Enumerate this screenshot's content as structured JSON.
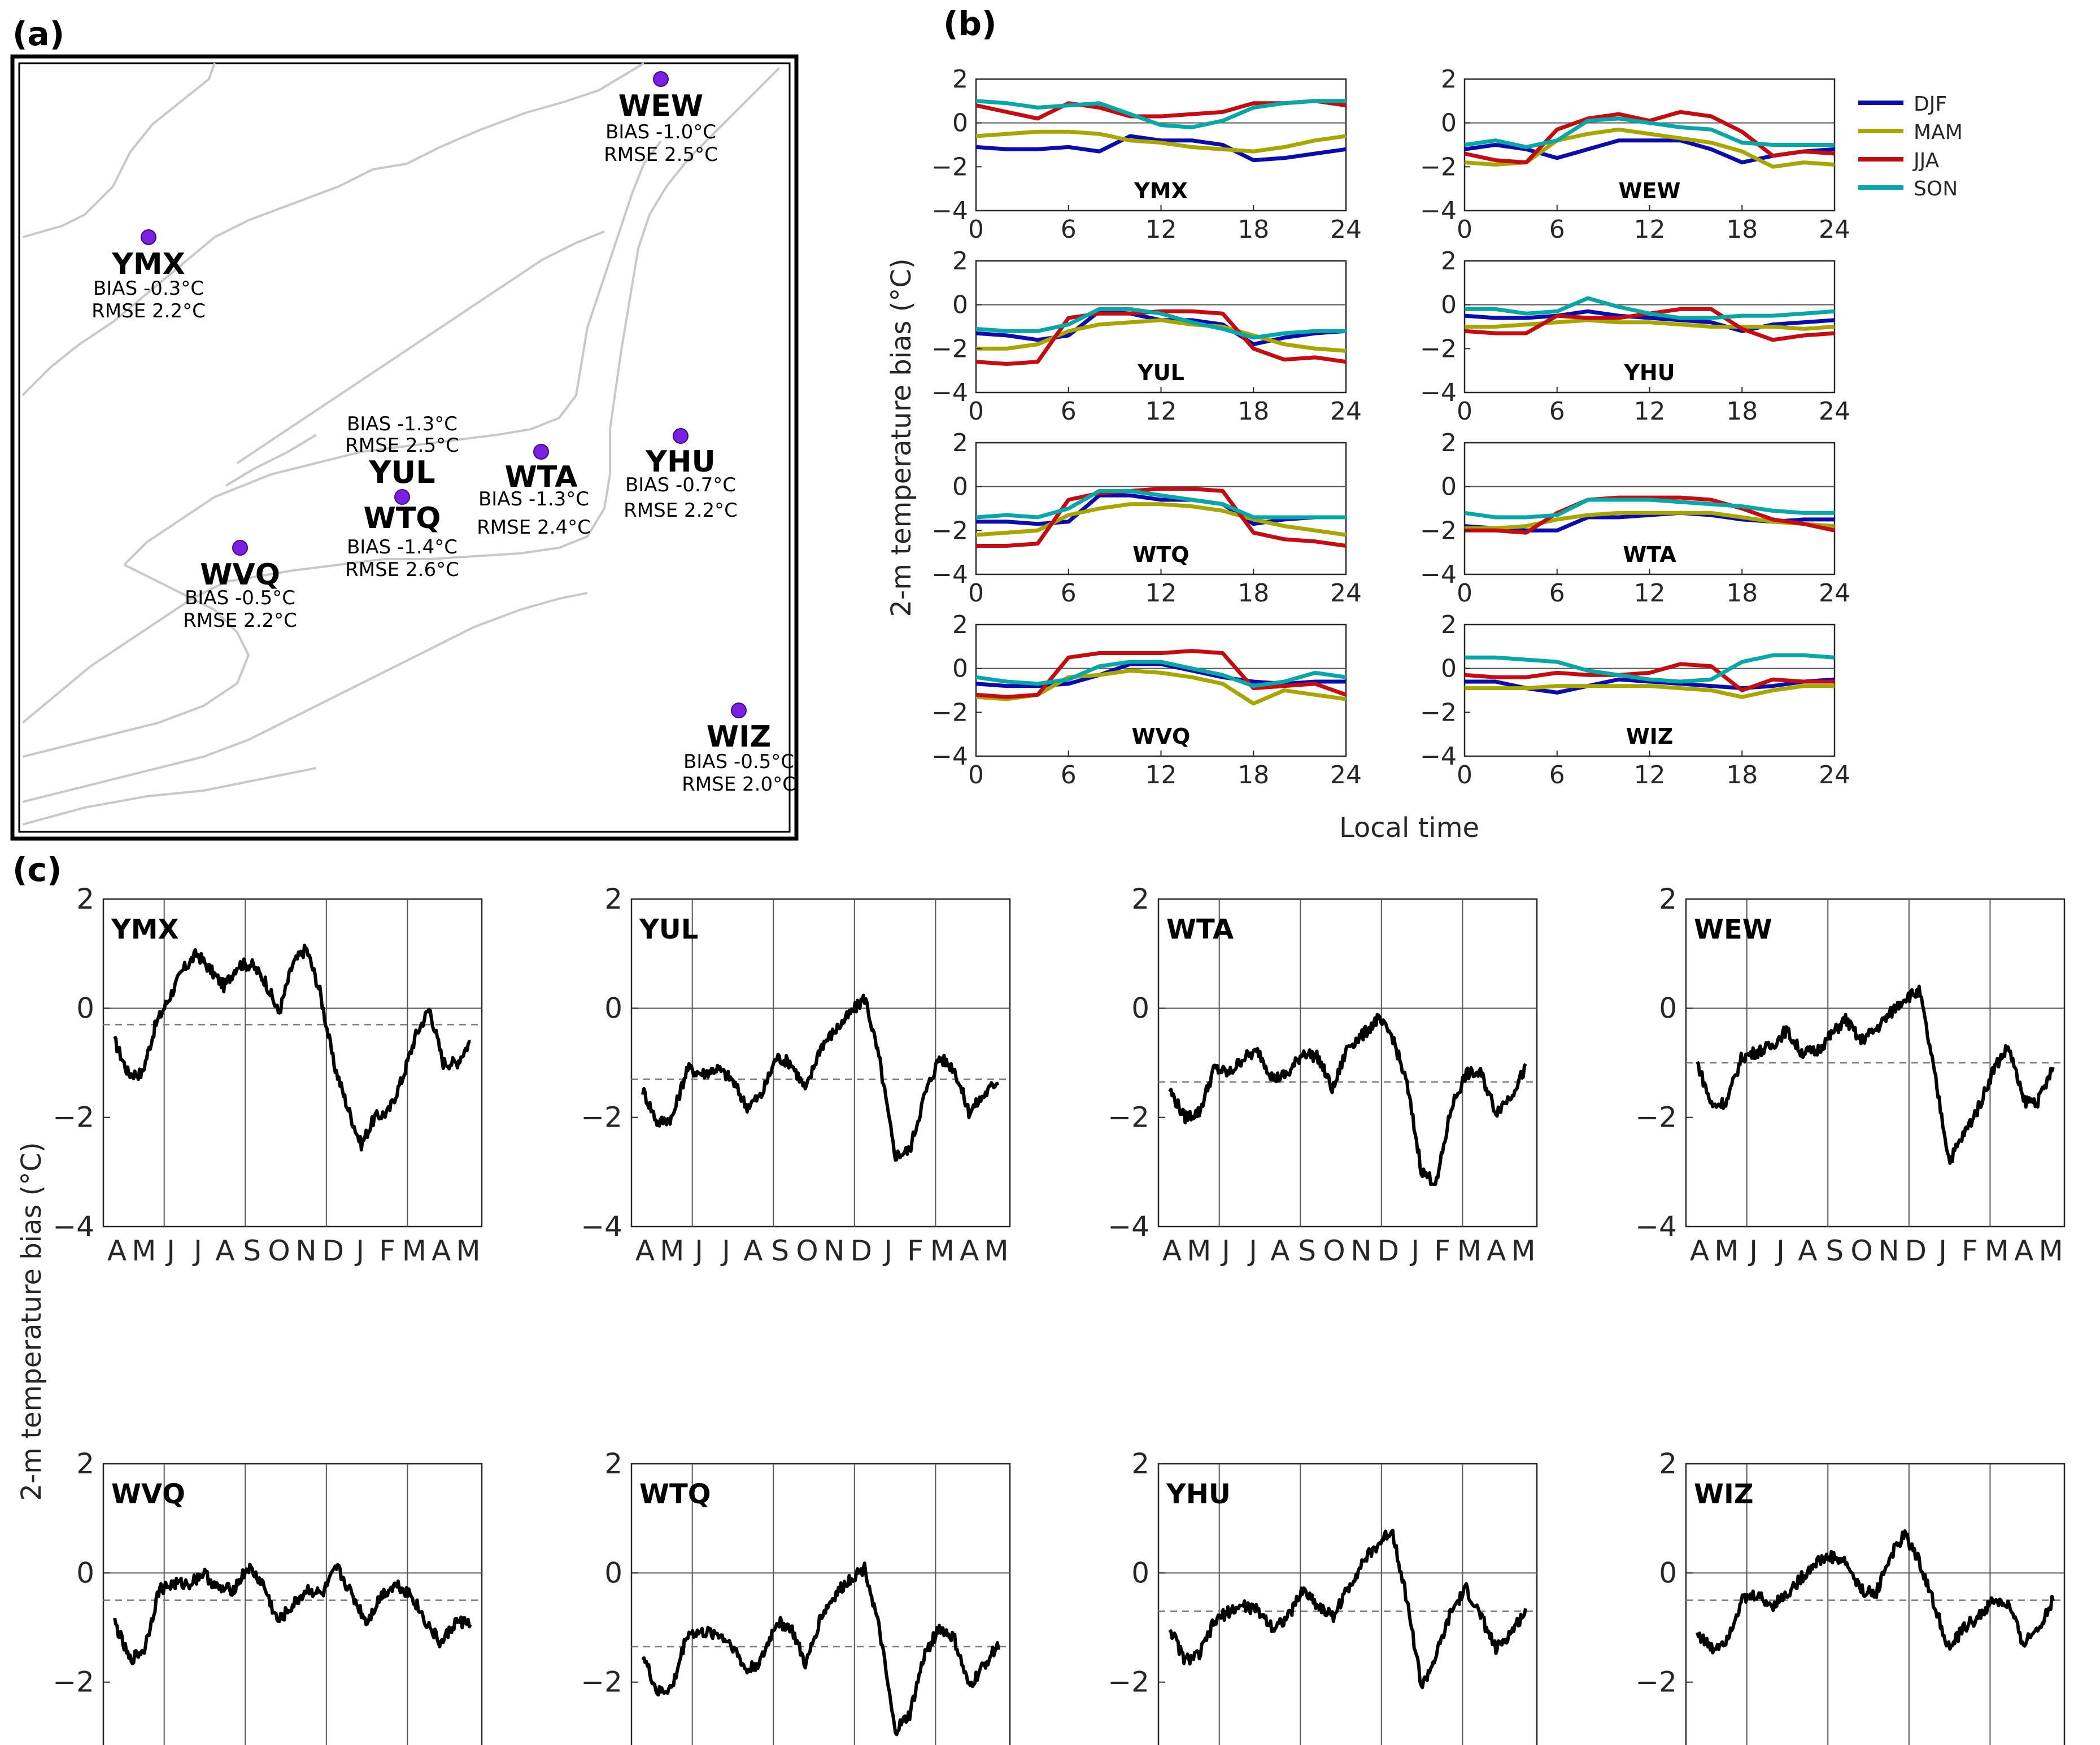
{
  "panel_labels": {
    "a": "(a)",
    "b": "(b)",
    "c": "(c)"
  },
  "colors": {
    "DJF": "#0c0ca8",
    "MAM": "#a8a400",
    "JJA": "#c00e12",
    "SON": "#0aa6a6",
    "line_c": "#000000",
    "dashed": "#7a7a7a",
    "coast": "#c8c8c8",
    "station_marker": "#7b1fe0"
  },
  "chart_data": [
    {
      "panel": "a",
      "type": "map",
      "stations": [
        {
          "code": "WEW",
          "bias": "BIAS -1.0°C",
          "rmse": "RMSE 2.5°C"
        },
        {
          "code": "YMX",
          "bias": "BIAS -0.3°C",
          "rmse": "RMSE 2.2°C"
        },
        {
          "code": "YUL",
          "bias": "BIAS -1.3°C",
          "rmse": "RMSE 2.5°C"
        },
        {
          "code": "WTQ",
          "bias": "BIAS -1.4°C",
          "rmse": "RMSE 2.6°C"
        },
        {
          "code": "WTA",
          "bias": "BIAS -1.3°C",
          "rmse": "RMSE 2.4°C"
        },
        {
          "code": "YHU",
          "bias": "BIAS -0.7°C",
          "rmse": "RMSE 2.2°C"
        },
        {
          "code": "WVQ",
          "bias": "BIAS -0.5°C",
          "rmse": "RMSE 2.2°C"
        },
        {
          "code": "WIZ",
          "bias": "BIAS -0.5°C",
          "rmse": "RMSE 2.0°C"
        }
      ]
    },
    {
      "panel": "b",
      "type": "line",
      "ylabel": "2-m temperature bias (°C)",
      "xlabel": "Local time",
      "xlim": [
        0,
        24
      ],
      "ylim": [
        -4,
        2
      ],
      "xticks": [
        "0",
        "6",
        "12",
        "18",
        "24"
      ],
      "yticks": [
        "2",
        "0",
        "−2",
        "−4"
      ],
      "legend": [
        "DJF",
        "MAM",
        "JJA",
        "SON"
      ],
      "hours": [
        0,
        2,
        4,
        6,
        8,
        10,
        12,
        14,
        16,
        18,
        20,
        22,
        24
      ],
      "subplots": [
        {
          "station": "YMX",
          "series": {
            "DJF": [
              -1.1,
              -1.2,
              -1.2,
              -1.1,
              -1.3,
              -0.6,
              -0.8,
              -0.8,
              -1.0,
              -1.7,
              -1.6,
              -1.4,
              -1.2
            ],
            "MAM": [
              -0.6,
              -0.5,
              -0.4,
              -0.4,
              -0.5,
              -0.8,
              -0.9,
              -1.1,
              -1.2,
              -1.3,
              -1.1,
              -0.8,
              -0.6
            ],
            "JJA": [
              0.8,
              0.5,
              0.2,
              0.9,
              0.7,
              0.3,
              0.3,
              0.4,
              0.5,
              0.9,
              0.9,
              1.0,
              0.8
            ],
            "SON": [
              1.0,
              0.9,
              0.7,
              0.8,
              0.9,
              0.4,
              -0.1,
              -0.2,
              0.1,
              0.7,
              0.9,
              1.0,
              1.0
            ]
          }
        },
        {
          "station": "WEW",
          "series": {
            "DJF": [
              -1.2,
              -1.0,
              -1.2,
              -1.6,
              -1.2,
              -0.8,
              -0.8,
              -0.8,
              -1.2,
              -1.8,
              -1.5,
              -1.3,
              -1.2
            ],
            "MAM": [
              -1.8,
              -1.9,
              -1.8,
              -0.8,
              -0.5,
              -0.3,
              -0.5,
              -0.7,
              -0.9,
              -1.3,
              -2.0,
              -1.8,
              -1.9
            ],
            "JJA": [
              -1.4,
              -1.7,
              -1.8,
              -0.3,
              0.2,
              0.4,
              0.1,
              0.5,
              0.3,
              -0.4,
              -1.5,
              -1.3,
              -1.4
            ],
            "SON": [
              -1.0,
              -0.8,
              -1.1,
              -0.8,
              0.1,
              0.2,
              0.0,
              -0.2,
              -0.3,
              -0.9,
              -1.0,
              -1.0,
              -1.0
            ]
          }
        },
        {
          "station": "YUL",
          "series": {
            "DJF": [
              -1.3,
              -1.4,
              -1.6,
              -1.4,
              -0.3,
              -0.4,
              -0.7,
              -0.7,
              -0.9,
              -1.8,
              -1.5,
              -1.3,
              -1.2
            ],
            "MAM": [
              -2.0,
              -2.0,
              -1.8,
              -1.2,
              -0.9,
              -0.8,
              -0.7,
              -0.9,
              -1.0,
              -1.4,
              -1.8,
              -2.0,
              -2.1
            ],
            "JJA": [
              -2.6,
              -2.7,
              -2.6,
              -0.6,
              -0.4,
              -0.4,
              -0.3,
              -0.3,
              -0.4,
              -2.0,
              -2.5,
              -2.4,
              -2.6
            ],
            "SON": [
              -1.1,
              -1.2,
              -1.2,
              -0.9,
              -0.2,
              -0.2,
              -0.4,
              -0.8,
              -1.1,
              -1.5,
              -1.3,
              -1.2,
              -1.2
            ]
          }
        },
        {
          "station": "YHU",
          "series": {
            "DJF": [
              -0.5,
              -0.6,
              -0.6,
              -0.5,
              -0.3,
              -0.5,
              -0.6,
              -0.7,
              -0.8,
              -1.2,
              -0.9,
              -0.8,
              -0.7
            ],
            "MAM": [
              -1.0,
              -1.0,
              -0.9,
              -0.8,
              -0.7,
              -0.8,
              -0.8,
              -0.9,
              -1.0,
              -1.0,
              -1.0,
              -1.1,
              -1.0
            ],
            "JJA": [
              -1.2,
              -1.3,
              -1.3,
              -0.5,
              -0.6,
              -0.6,
              -0.4,
              -0.2,
              -0.2,
              -1.1,
              -1.6,
              -1.4,
              -1.3
            ],
            "SON": [
              -0.2,
              -0.2,
              -0.4,
              -0.3,
              0.3,
              -0.1,
              -0.4,
              -0.6,
              -0.6,
              -0.5,
              -0.5,
              -0.4,
              -0.3
            ]
          }
        },
        {
          "station": "WTQ",
          "series": {
            "DJF": [
              -1.6,
              -1.6,
              -1.7,
              -1.6,
              -0.4,
              -0.4,
              -0.6,
              -0.6,
              -0.8,
              -1.7,
              -1.5,
              -1.4,
              -1.4
            ],
            "MAM": [
              -2.2,
              -2.1,
              -2.0,
              -1.3,
              -1.0,
              -0.8,
              -0.8,
              -0.9,
              -1.1,
              -1.5,
              -1.8,
              -2.0,
              -2.2
            ],
            "JJA": [
              -2.7,
              -2.7,
              -2.6,
              -0.6,
              -0.3,
              -0.2,
              -0.1,
              -0.1,
              -0.2,
              -2.1,
              -2.4,
              -2.5,
              -2.7
            ],
            "SON": [
              -1.4,
              -1.3,
              -1.4,
              -1.0,
              -0.2,
              -0.2,
              -0.4,
              -0.6,
              -0.8,
              -1.4,
              -1.4,
              -1.4,
              -1.4
            ]
          }
        },
        {
          "station": "WTA",
          "series": {
            "DJF": [
              -1.8,
              -1.9,
              -2.0,
              -2.0,
              -1.4,
              -1.4,
              -1.3,
              -1.2,
              -1.3,
              -1.5,
              -1.6,
              -1.5,
              -1.5
            ],
            "MAM": [
              -1.9,
              -1.9,
              -1.8,
              -1.5,
              -1.3,
              -1.2,
              -1.2,
              -1.2,
              -1.2,
              -1.4,
              -1.6,
              -1.7,
              -1.8
            ],
            "JJA": [
              -2.0,
              -2.0,
              -2.1,
              -1.2,
              -0.6,
              -0.5,
              -0.5,
              -0.5,
              -0.6,
              -1.0,
              -1.5,
              -1.7,
              -2.0
            ],
            "SON": [
              -1.2,
              -1.4,
              -1.4,
              -1.3,
              -0.6,
              -0.6,
              -0.6,
              -0.7,
              -0.8,
              -0.9,
              -1.1,
              -1.2,
              -1.2
            ]
          }
        },
        {
          "station": "WVQ",
          "series": {
            "DJF": [
              -0.7,
              -0.8,
              -0.8,
              -0.7,
              -0.3,
              0.2,
              0.2,
              -0.1,
              -0.4,
              -0.6,
              -0.7,
              -0.6,
              -0.6
            ],
            "MAM": [
              -1.3,
              -1.4,
              -1.2,
              -0.4,
              -0.3,
              -0.1,
              -0.2,
              -0.4,
              -0.7,
              -1.6,
              -1.0,
              -1.2,
              -1.4
            ],
            "JJA": [
              -1.2,
              -1.3,
              -1.2,
              0.5,
              0.7,
              0.7,
              0.7,
              0.8,
              0.7,
              -0.9,
              -0.8,
              -0.7,
              -1.2
            ],
            "SON": [
              -0.4,
              -0.6,
              -0.7,
              -0.5,
              0.1,
              0.3,
              0.3,
              0.0,
              -0.3,
              -0.8,
              -0.6,
              -0.2,
              -0.4
            ]
          }
        },
        {
          "station": "WIZ",
          "series": {
            "DJF": [
              -0.6,
              -0.6,
              -0.9,
              -1.1,
              -0.8,
              -0.5,
              -0.6,
              -0.7,
              -0.8,
              -0.9,
              -0.8,
              -0.6,
              -0.5
            ],
            "MAM": [
              -0.9,
              -0.9,
              -0.9,
              -0.8,
              -0.8,
              -0.8,
              -0.8,
              -0.9,
              -1.0,
              -1.3,
              -1.0,
              -0.8,
              -0.8
            ],
            "JJA": [
              -0.3,
              -0.4,
              -0.4,
              -0.2,
              -0.3,
              -0.3,
              -0.2,
              0.2,
              0.1,
              -1.0,
              -0.5,
              -0.6,
              -0.6
            ],
            "SON": [
              0.5,
              0.5,
              0.4,
              0.3,
              -0.1,
              -0.3,
              -0.5,
              -0.6,
              -0.5,
              0.3,
              0.6,
              0.6,
              0.5
            ]
          }
        }
      ]
    },
    {
      "panel": "c",
      "type": "line",
      "ylabel": "2-m temperature bias (°C)",
      "ylim": [
        -4,
        2
      ],
      "yticks": [
        "2",
        "0",
        "−2",
        "−4"
      ],
      "month_labels": [
        "A",
        "M",
        "J",
        "J",
        "A",
        "S",
        "O",
        "N",
        "D",
        "J",
        "F",
        "M",
        "A",
        "M"
      ],
      "vlines_at_month_index": [
        1.75,
        4.75,
        7.75,
        10.75
      ],
      "subplots": [
        {
          "station": "YMX",
          "mean_bias": -0.3,
          "values": [
            -0.6,
            -1.2,
            -1.2,
            -0.3,
            0.2,
            0.7,
            1.0,
            0.7,
            0.4,
            0.8,
            0.8,
            0.5,
            -0.1,
            0.8,
            1.1,
            0.3,
            -1.0,
            -1.8,
            -2.5,
            -2.0,
            -1.9,
            -1.3,
            -0.5,
            0.0,
            -1.0,
            -1.0,
            -0.6
          ]
        },
        {
          "station": "YUL",
          "mean_bias": -1.3,
          "values": [
            -1.5,
            -2.1,
            -2.0,
            -1.1,
            -1.2,
            -1.1,
            -1.3,
            -1.8,
            -1.6,
            -0.9,
            -1.0,
            -1.5,
            -0.7,
            -0.4,
            -0.1,
            0.2,
            -1.0,
            -2.7,
            -2.6,
            -1.6,
            -0.9,
            -1.1,
            -1.9,
            -1.6,
            -1.3
          ]
        },
        {
          "station": "WTA",
          "mean_bias": -1.35,
          "values": [
            -1.5,
            -2.0,
            -1.9,
            -1.1,
            -1.2,
            -0.9,
            -0.8,
            -1.3,
            -1.2,
            -0.8,
            -0.9,
            -1.5,
            -0.7,
            -0.5,
            -0.2,
            -0.5,
            -1.4,
            -3.0,
            -3.2,
            -1.8,
            -1.2,
            -1.2,
            -1.9,
            -1.6,
            -1.1
          ]
        },
        {
          "station": "WEW",
          "mean_bias": -1.0,
          "values": [
            -1.0,
            -1.8,
            -1.7,
            -0.9,
            -0.8,
            -0.7,
            -0.4,
            -0.8,
            -0.8,
            -0.5,
            -0.2,
            -0.6,
            -0.4,
            -0.1,
            0.2,
            0.3,
            -1.2,
            -2.8,
            -2.3,
            -1.8,
            -1.1,
            -0.7,
            -1.7,
            -1.7,
            -1.1
          ]
        },
        {
          "station": "WVQ",
          "mean_bias": -0.5,
          "values": [
            -0.9,
            -1.6,
            -1.4,
            -0.3,
            -0.2,
            -0.2,
            0.0,
            -0.3,
            -0.3,
            0.1,
            -0.2,
            -0.9,
            -0.6,
            -0.3,
            -0.4,
            0.1,
            -0.4,
            -0.9,
            -0.4,
            -0.2,
            -0.4,
            -0.9,
            -1.3,
            -0.9,
            -0.9
          ]
        },
        {
          "station": "WTQ",
          "mean_bias": -1.35,
          "values": [
            -1.5,
            -2.2,
            -2.1,
            -1.1,
            -1.1,
            -1.1,
            -1.3,
            -1.8,
            -1.6,
            -0.9,
            -1.0,
            -1.7,
            -0.8,
            -0.4,
            -0.1,
            0.1,
            -1.1,
            -2.9,
            -2.6,
            -1.5,
            -1.0,
            -1.2,
            -2.1,
            -1.7,
            -1.3
          ]
        },
        {
          "station": "YHU",
          "mean_bias": -0.7,
          "values": [
            -1.0,
            -1.6,
            -1.5,
            -0.9,
            -0.7,
            -0.6,
            -0.7,
            -1.0,
            -0.8,
            -0.3,
            -0.6,
            -0.8,
            -0.3,
            0.2,
            0.5,
            0.8,
            -0.5,
            -2.1,
            -1.5,
            -0.7,
            -0.3,
            -0.8,
            -1.4,
            -1.1,
            -0.7
          ]
        },
        {
          "station": "WIZ",
          "mean_bias": -0.5,
          "values": [
            -1.1,
            -1.4,
            -1.2,
            -0.5,
            -0.4,
            -0.6,
            -0.4,
            -0.1,
            0.2,
            0.3,
            0.2,
            -0.3,
            -0.4,
            0.3,
            0.7,
            0.2,
            -0.6,
            -1.4,
            -1.0,
            -0.8,
            -0.5,
            -0.6,
            -1.3,
            -1.0,
            -0.5
          ]
        }
      ]
    }
  ]
}
